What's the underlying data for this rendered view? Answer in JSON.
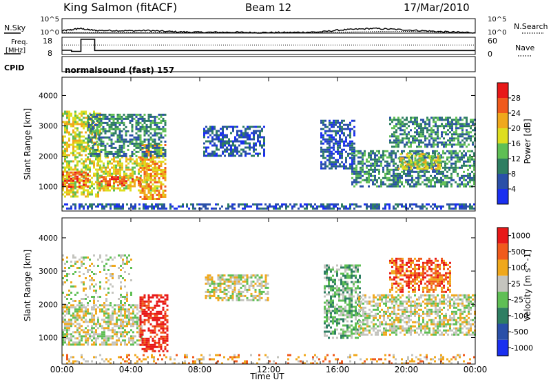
{
  "header": {
    "station": "King Salmon (fitACF)",
    "beam": "Beam 12",
    "date": "17/Mar/2010"
  },
  "panels": {
    "nsky": {
      "label": "N.Sky",
      "tick_top": "10^5",
      "tick_bottom": "10^0",
      "right_label": "N.Search",
      "right_tick_top": "10^5",
      "right_tick_bottom": "10^0"
    },
    "freq": {
      "label_line1": "Freq.",
      "label_line2": "[MHz]",
      "tick_top": "18",
      "tick_bottom": "8",
      "right_label": "Nave",
      "right_tick_top": "60",
      "right_tick_bottom": "0"
    },
    "cpid": {
      "label": "CPID",
      "text": "normalsound (fast) 157"
    }
  },
  "chart_data": [
    {
      "type": "line",
      "title": "",
      "series": [
        {
          "name": "N.Sky",
          "x_hours": [
            0,
            0.5,
            1,
            1.5,
            2,
            3,
            4,
            5,
            6,
            7,
            8,
            9,
            10,
            11,
            12,
            13,
            14,
            15,
            16,
            17,
            18,
            19,
            20,
            21,
            22,
            23,
            24
          ],
          "values_log10": [
            0.8,
            1.1,
            1.6,
            1.2,
            0.9,
            0.9,
            0.8,
            0.9,
            0.6,
            0.4,
            0.3,
            0.3,
            0.3,
            0.2,
            0.2,
            0.2,
            0.3,
            0.4,
            1.0,
            1.3,
            1.6,
            1.4,
            1.1,
            0.8,
            0.5,
            0.3,
            0.2
          ]
        },
        {
          "name": "N.Search",
          "x_hours": [
            0,
            4,
            8,
            12,
            16,
            18,
            20,
            22,
            24
          ],
          "values_log10": [
            0.2,
            0.2,
            0.2,
            0.2,
            0.3,
            0.5,
            0.6,
            0.3,
            0.1
          ]
        }
      ],
      "xlim": [
        0,
        24
      ],
      "ylim_log10": [
        0,
        5
      ]
    },
    {
      "type": "line",
      "title": "",
      "series": [
        {
          "name": "Freq.",
          "unit": "MHz",
          "x_hours": [
            0,
            0.55,
            0.55,
            1.1,
            1.1,
            1.9,
            1.9,
            24
          ],
          "values": [
            10.5,
            10.5,
            9.8,
            9.8,
            16.8,
            16.8,
            10.3,
            10.3
          ]
        },
        {
          "name": "Nave",
          "x_hours": [
            0,
            24
          ],
          "values": [
            33,
            33
          ]
        }
      ],
      "xlim": [
        0,
        24
      ],
      "ylim_left": [
        8,
        18
      ],
      "ylim_right": [
        0,
        60
      ]
    },
    {
      "type": "heatmap",
      "quantity": "Power",
      "colorbar_label": "Power [dB]",
      "colorbar_ticks": [
        "4",
        "8",
        "12",
        "16",
        "20",
        "24",
        "28"
      ],
      "colors": [
        "#1a2ff0",
        "#2a50a8",
        "#2e7e62",
        "#5fbf55",
        "#dede1f",
        "#f0a81c",
        "#f05a1c",
        "#e81818"
      ],
      "ylabel": "Slant Range [km]",
      "yticks": [
        "1000",
        "2000",
        "3000",
        "4000"
      ],
      "ylim": [
        200,
        4600
      ],
      "xlim": [
        0,
        24
      ],
      "echo_regions": [
        {
          "t0": 0.0,
          "t1": 2.2,
          "r0": 700,
          "r1": 3500,
          "level": 4
        },
        {
          "t0": 0.0,
          "t1": 1.5,
          "r0": 1000,
          "r1": 1500,
          "level": 6
        },
        {
          "t0": 2.0,
          "t1": 5.5,
          "r0": 900,
          "r1": 2000,
          "level": 4
        },
        {
          "t0": 2.0,
          "t1": 4.5,
          "r0": 1050,
          "r1": 1350,
          "level": 6
        },
        {
          "t0": 4.5,
          "t1": 6.0,
          "r0": 600,
          "r1": 2400,
          "level": 5
        },
        {
          "t0": 1.5,
          "t1": 6.0,
          "r0": 2000,
          "r1": 3400,
          "level": 2
        },
        {
          "t0": 8.2,
          "t1": 11.8,
          "r0": 2000,
          "r1": 3000,
          "level": 1
        },
        {
          "t0": 15.0,
          "t1": 17.0,
          "r0": 1600,
          "r1": 3200,
          "level": 1
        },
        {
          "t0": 16.8,
          "t1": 24.0,
          "r0": 1000,
          "r1": 2200,
          "level": 2
        },
        {
          "t0": 19.5,
          "t1": 22.0,
          "r0": 1600,
          "r1": 2100,
          "level": 4
        },
        {
          "t0": 19.0,
          "t1": 24.0,
          "r0": 2300,
          "r1": 3300,
          "level": 2
        },
        {
          "t0": 0.0,
          "t1": 24.0,
          "r0": 250,
          "r1": 450,
          "level": 1
        }
      ]
    },
    {
      "type": "heatmap",
      "quantity": "Velocity",
      "colorbar_label": "Velocity [m s^-1]",
      "colorbar_ticks": [
        "1000",
        "500",
        "100",
        "25",
        "-25",
        "-100",
        "-500",
        "-1000"
      ],
      "colors": [
        "#1a2ff0",
        "#2a50a8",
        "#2e7e62",
        "#5fbf55",
        "#c4c4be",
        "#f0a81c",
        "#f05a1c",
        "#e81818"
      ],
      "ylabel": "Slant Range [km]",
      "yticks": [
        "1000",
        "2000",
        "3000",
        "4000"
      ],
      "ylim": [
        200,
        4600
      ],
      "xlabel": "Time UT",
      "xticks": [
        "00:00",
        "04:00",
        "08:00",
        "12:00",
        "16:00",
        "20:00",
        "00:00"
      ],
      "xlim": [
        0,
        24
      ],
      "echo_regions": [
        {
          "t0": 0.0,
          "t1": 4.6,
          "r0": 800,
          "r1": 2000,
          "level": 4
        },
        {
          "t0": 0.0,
          "t1": 4.0,
          "r0": 2000,
          "r1": 3500,
          "level": 4,
          "sparse": true
        },
        {
          "t0": 4.5,
          "t1": 6.1,
          "r0": 600,
          "r1": 2300,
          "level": 7
        },
        {
          "t0": 8.3,
          "t1": 12.0,
          "r0": 2100,
          "r1": 2900,
          "level": 4
        },
        {
          "t0": 15.2,
          "t1": 17.3,
          "r0": 1000,
          "r1": 3200,
          "level": 3
        },
        {
          "t0": 17.2,
          "t1": 24.0,
          "r0": 1100,
          "r1": 2300,
          "level": 4
        },
        {
          "t0": 19.0,
          "t1": 22.5,
          "r0": 2400,
          "r1": 3400,
          "level": 6
        },
        {
          "t0": 0.0,
          "t1": 24.0,
          "r0": 250,
          "r1": 500,
          "level": 5,
          "sparse": true
        }
      ]
    }
  ]
}
